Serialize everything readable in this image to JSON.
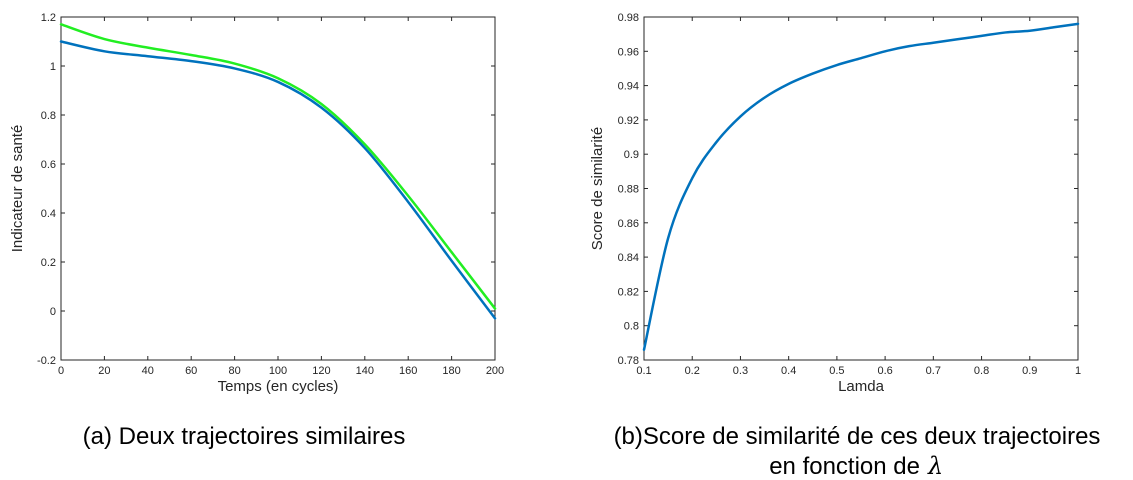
{
  "chart_data": [
    {
      "type": "line",
      "title": "",
      "xlabel": "Temps (en cycles)",
      "ylabel": "Indicateur de santé",
      "xlim": [
        0,
        200
      ],
      "ylim": [
        -0.2,
        1.2
      ],
      "xticks": [
        "0",
        "20",
        "40",
        "60",
        "80",
        "100",
        "120",
        "140",
        "160",
        "180",
        "200"
      ],
      "yticks": [
        "-0.2",
        "0",
        "0.2",
        "0.4",
        "0.6",
        "0.8",
        "1",
        "1.2"
      ],
      "grid": false,
      "x": [
        0,
        20,
        40,
        60,
        80,
        100,
        120,
        140,
        160,
        180,
        200
      ],
      "series": [
        {
          "color": "#22ee22",
          "values": [
            1.17,
            1.11,
            1.075,
            1.045,
            1.01,
            0.95,
            0.845,
            0.68,
            0.47,
            0.24,
            0.01
          ]
        },
        {
          "color": "#0072bd",
          "values": [
            1.1,
            1.06,
            1.04,
            1.02,
            0.99,
            0.935,
            0.83,
            0.665,
            0.445,
            0.205,
            -0.03
          ]
        }
      ],
      "caption": "(a) Deux trajectoires similaires"
    },
    {
      "type": "line",
      "title": "",
      "xlabel": "Lamda",
      "ylabel": "Score de similarité",
      "xlim": [
        0.1,
        1
      ],
      "ylim": [
        0.78,
        0.98
      ],
      "xticks": [
        "0.1",
        "0.2",
        "0.3",
        "0.4",
        "0.5",
        "0.6",
        "0.7",
        "0.8",
        "0.9",
        "1"
      ],
      "yticks": [
        "0.78",
        "0.8",
        "0.82",
        "0.84",
        "0.86",
        "0.88",
        "0.9",
        "0.92",
        "0.94",
        "0.96",
        "0.98"
      ],
      "grid": false,
      "x": [
        0.1,
        0.15,
        0.2,
        0.25,
        0.3,
        0.35,
        0.4,
        0.45,
        0.5,
        0.55,
        0.6,
        0.65,
        0.7,
        0.75,
        0.8,
        0.85,
        0.9,
        0.95,
        1.0
      ],
      "series": [
        {
          "color": "#0072bd",
          "values": [
            0.786,
            0.851,
            0.886,
            0.907,
            0.922,
            0.933,
            0.941,
            0.947,
            0.952,
            0.956,
            0.96,
            0.963,
            0.965,
            0.967,
            0.969,
            0.971,
            0.972,
            0.974,
            0.976
          ]
        }
      ],
      "caption_line1": "(b)Score de similarité de ces deux trajectoires",
      "caption_line2": "en fonction de",
      "caption_symbol": "λ"
    }
  ]
}
